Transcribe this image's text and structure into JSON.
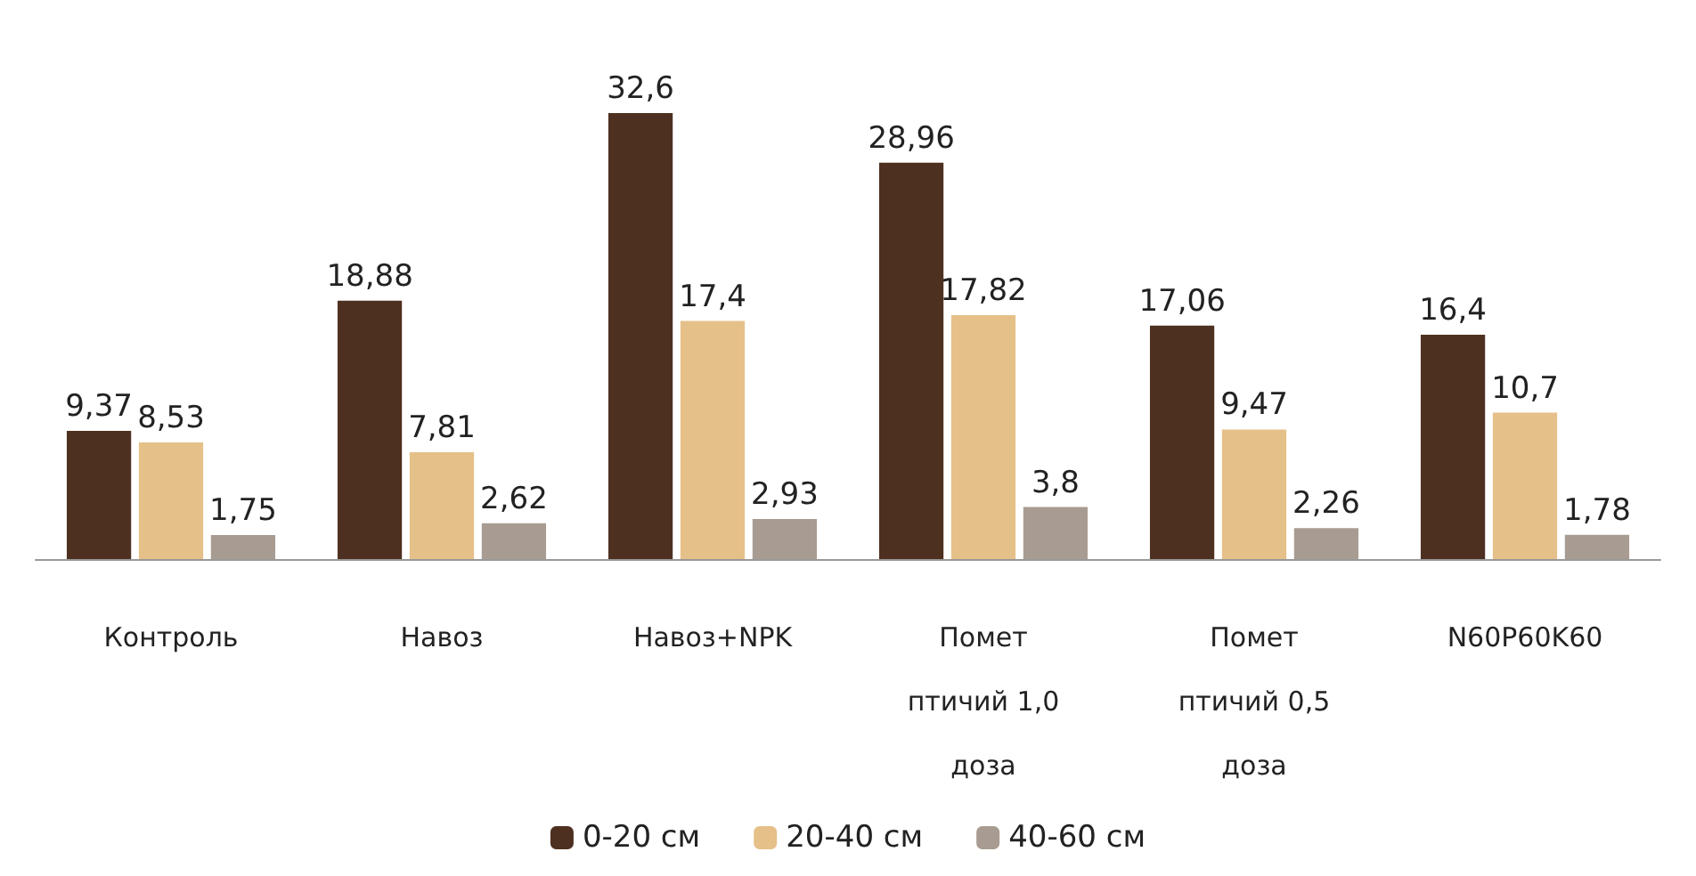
{
  "chart_data": {
    "type": "bar",
    "categories": [
      "Контроль",
      "Навоз",
      "Навоз+NPK",
      "Помет птичий 1,0 доза",
      "Помет птичий 0,5 доза",
      "N60P60K60"
    ],
    "series": [
      {
        "name": "0-20 см",
        "color": "#4e3020",
        "values": [
          9.37,
          18.88,
          32.6,
          28.96,
          17.06,
          16.4
        ],
        "value_labels": [
          "9,37",
          "18,88",
          "32,6",
          "28,96",
          "17,06",
          "16,4"
        ]
      },
      {
        "name": "20-40 см",
        "color": "#e6c089",
        "values": [
          8.53,
          7.81,
          17.4,
          17.82,
          9.47,
          10.7
        ],
        "value_labels": [
          "8,53",
          "7,81",
          "17,4",
          "17,82",
          "9,47",
          "10,7"
        ]
      },
      {
        "name": "40-60 см",
        "color": "#a89c92",
        "values": [
          1.75,
          2.62,
          2.93,
          3.8,
          2.26,
          1.78
        ],
        "value_labels": [
          "1,75",
          "2,62",
          "2,93",
          "3,8",
          "2,26",
          "1,78"
        ]
      }
    ],
    "legend": "bottom"
  }
}
